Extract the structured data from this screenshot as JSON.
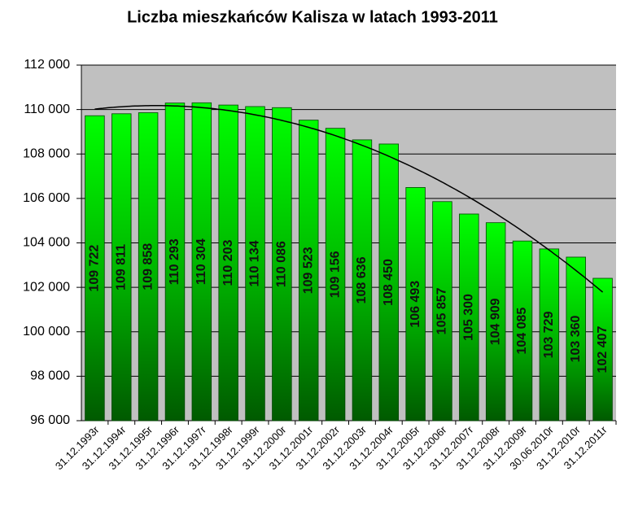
{
  "chart_data": {
    "type": "bar",
    "title": "Liczba mieszkańców Kalisza w latach 1993-2011",
    "categories": [
      "31.12.1993r",
      "31.12.1994r",
      "31.12.1995r",
      "31.12.1996r",
      "31.12.1997r",
      "31.12.1998r",
      "31.12.1999r",
      "31.12.2000r",
      "31.12.2001r",
      "31.12.2002r",
      "31.12.2003r",
      "31.12.2004r",
      "31.12.2005r",
      "31.12.2006r",
      "31.12.2007r",
      "31.12.2008r",
      "31.12.2009r",
      "30.06.2010r",
      "31.12.2010r",
      "31.12.2011r"
    ],
    "values": [
      109722,
      109811,
      109858,
      110293,
      110304,
      110203,
      110134,
      110086,
      109523,
      109156,
      108636,
      108450,
      106493,
      105857,
      105300,
      104909,
      104085,
      103729,
      103360,
      102407
    ],
    "value_labels": [
      "109 722",
      "109 811",
      "109 858",
      "110 293",
      "110 304",
      "110 203",
      "110 134",
      "110 086",
      "109 523",
      "109 156",
      "108 636",
      "108 450",
      "106 493",
      "105 857",
      "105 300",
      "104 909",
      "104 085",
      "103 729",
      "103 360",
      "102 407"
    ],
    "color": "#00ff00",
    "ylim": [
      96000,
      112000
    ],
    "yticks": [
      {
        "value": 96000,
        "label": "96 000"
      },
      {
        "value": 98000,
        "label": "98 000"
      },
      {
        "value": 100000,
        "label": "100 000"
      },
      {
        "value": 102000,
        "label": "102 000"
      },
      {
        "value": 104000,
        "label": "104 000"
      },
      {
        "value": 106000,
        "label": "106 000"
      },
      {
        "value": 108000,
        "label": "108 000"
      },
      {
        "value": 110000,
        "label": "110 000"
      },
      {
        "value": 112000,
        "label": "112 000"
      }
    ],
    "grid": true,
    "trendline": "polynomial"
  }
}
